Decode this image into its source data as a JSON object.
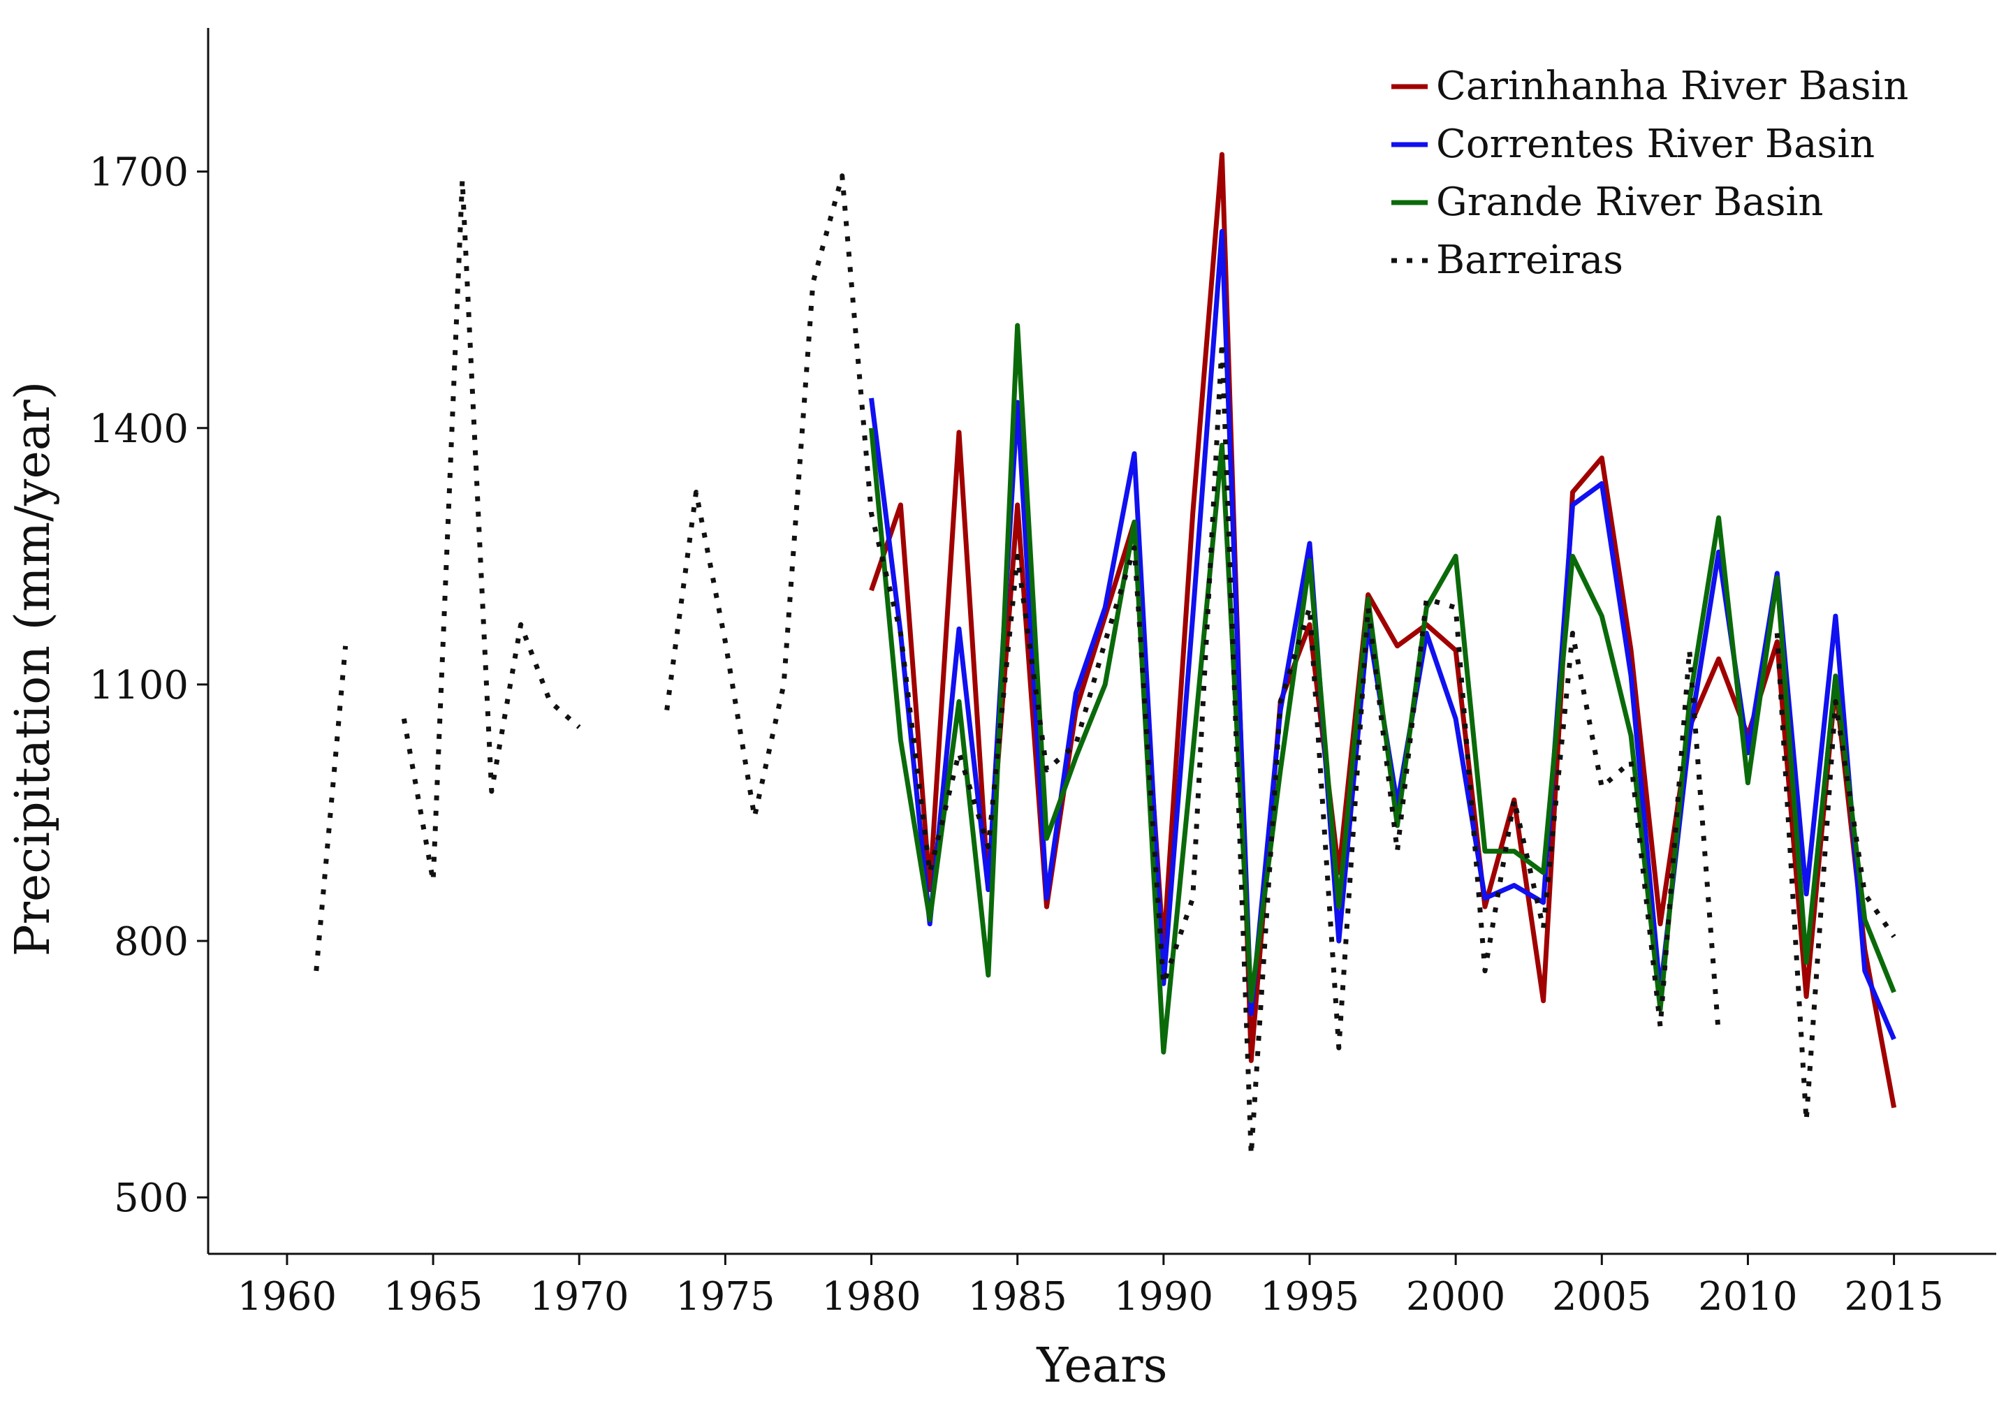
{
  "chart_data": {
    "type": "line",
    "title": "",
    "xlabel": "Years",
    "ylabel": "Precipitation (mm/year)",
    "xlim": [
      1957.3,
      2018.5
    ],
    "ylim": [
      434,
      1868
    ],
    "xticks": [
      1960,
      1965,
      1970,
      1975,
      1980,
      1985,
      1990,
      1995,
      2000,
      2005,
      2010,
      2015
    ],
    "xtick_labels": [
      "1960",
      "1965",
      "1970",
      "1975",
      "1980",
      "1985",
      "1990",
      "1995",
      "2000",
      "2005",
      "2010",
      "2015"
    ],
    "yticks": [
      500,
      800,
      1100,
      1400,
      1700
    ],
    "ytick_labels": [
      "500",
      "800",
      "1100",
      "1400",
      "1700"
    ],
    "grid": false,
    "legend_position": "top-right",
    "series": [
      {
        "name": "Carinhanha River Basin",
        "color": "#a00000",
        "style": "solid",
        "x": [
          1980,
          1981,
          1982,
          1983,
          1984,
          1985,
          1986,
          1987,
          1988,
          1989,
          1990,
          1991,
          1992,
          1993,
          1994,
          1995,
          1996,
          1997,
          1998,
          1999,
          2000,
          2001,
          2002,
          2003,
          2004,
          2005,
          2006,
          2007,
          2008,
          2009,
          2010,
          2011,
          2012,
          2013,
          2014,
          2015
        ],
        "y": [
          1210,
          1310,
          860,
          1395,
          860,
          1310,
          840,
          1070,
          1180,
          1290,
          790,
          1300,
          1720,
          660,
          1080,
          1170,
          880,
          1205,
          1145,
          1170,
          1140,
          840,
          965,
          730,
          1325,
          1365,
          1140,
          820,
          1050,
          1130,
          1040,
          1150,
          735,
          1100,
          790,
          605
        ]
      },
      {
        "name": "Correntes River Basin",
        "color": "#1010f0",
        "style": "solid",
        "x": [
          1980,
          1981,
          1982,
          1983,
          1984,
          1985,
          1986,
          1987,
          1988,
          1989,
          1990,
          1991,
          1992,
          1993,
          1994,
          1995,
          1996,
          1997,
          1998,
          1999,
          2000,
          2001,
          2002,
          2003,
          2004,
          2005,
          2006,
          2007,
          2008,
          2009,
          2010,
          2011,
          2012,
          2013,
          2014,
          2015
        ],
        "y": [
          1435,
          1160,
          820,
          1165,
          860,
          1430,
          850,
          1090,
          1190,
          1370,
          750,
          1180,
          1630,
          715,
          1070,
          1265,
          800,
          1170,
          960,
          1160,
          1060,
          850,
          865,
          845,
          1310,
          1335,
          1110,
          740,
          1040,
          1255,
          1020,
          1230,
          855,
          1180,
          765,
          685
        ]
      },
      {
        "name": "Grande River Basin",
        "color": "#0a6a0a",
        "style": "solid",
        "x": [
          1980,
          1981,
          1982,
          1983,
          1984,
          1985,
          1986,
          1987,
          1988,
          1989,
          1990,
          1991,
          1992,
          1993,
          1994,
          1995,
          1996,
          1997,
          1998,
          1999,
          2000,
          2001,
          2002,
          2003,
          2004,
          2005,
          2006,
          2007,
          2008,
          2009,
          2010,
          2011,
          2012,
          2013,
          2014,
          2015
        ],
        "y": [
          1400,
          1035,
          825,
          1080,
          760,
          1520,
          920,
          1015,
          1100,
          1290,
          670,
          1020,
          1380,
          730,
          1000,
          1245,
          840,
          1200,
          935,
          1190,
          1250,
          905,
          905,
          880,
          1250,
          1180,
          1040,
          720,
          1080,
          1295,
          985,
          1225,
          775,
          1110,
          825,
          740
        ]
      },
      {
        "name": "Barreiras",
        "color": "#111111",
        "style": "dotted",
        "segments": [
          {
            "x": [
              1961,
              1962
            ],
            "y": [
              765,
              1145
            ]
          },
          {
            "x": [
              1964,
              1965,
              1966,
              1967,
              1968,
              1969,
              1970
            ],
            "y": [
              1060,
              870,
              1690,
              975,
              1170,
              1080,
              1050
            ]
          },
          {
            "x": [
              1973,
              1974,
              1975,
              1976,
              1977,
              1978,
              1979,
              1980,
              1981,
              1982,
              1983,
              1984,
              1985,
              1986,
              1987,
              1988,
              1989,
              1990,
              1991,
              1992,
              1993,
              1994,
              1995,
              1996,
              1997,
              1998,
              1999,
              2000,
              2001,
              2002,
              2003,
              2004,
              2005,
              2006,
              2007,
              2008,
              2009
            ],
            "y": [
              1070,
              1325,
              1150,
              945,
              1100,
              1570,
              1695,
              1300,
              1160,
              880,
              1020,
              910,
              1250,
              1000,
              1030,
              1150,
              1260,
              750,
              850,
              1500,
              550,
              1080,
              1190,
              675,
              1190,
              905,
              1200,
              1190,
              765,
              965,
              815,
              1160,
              980,
              1010,
              700,
              1140,
              690
            ]
          },
          {
            "x": [
              2011,
              2012,
              2013,
              2014,
              2015
            ],
            "y": [
              1160,
              590,
              1080,
              855,
              805
            ]
          }
        ]
      }
    ]
  }
}
